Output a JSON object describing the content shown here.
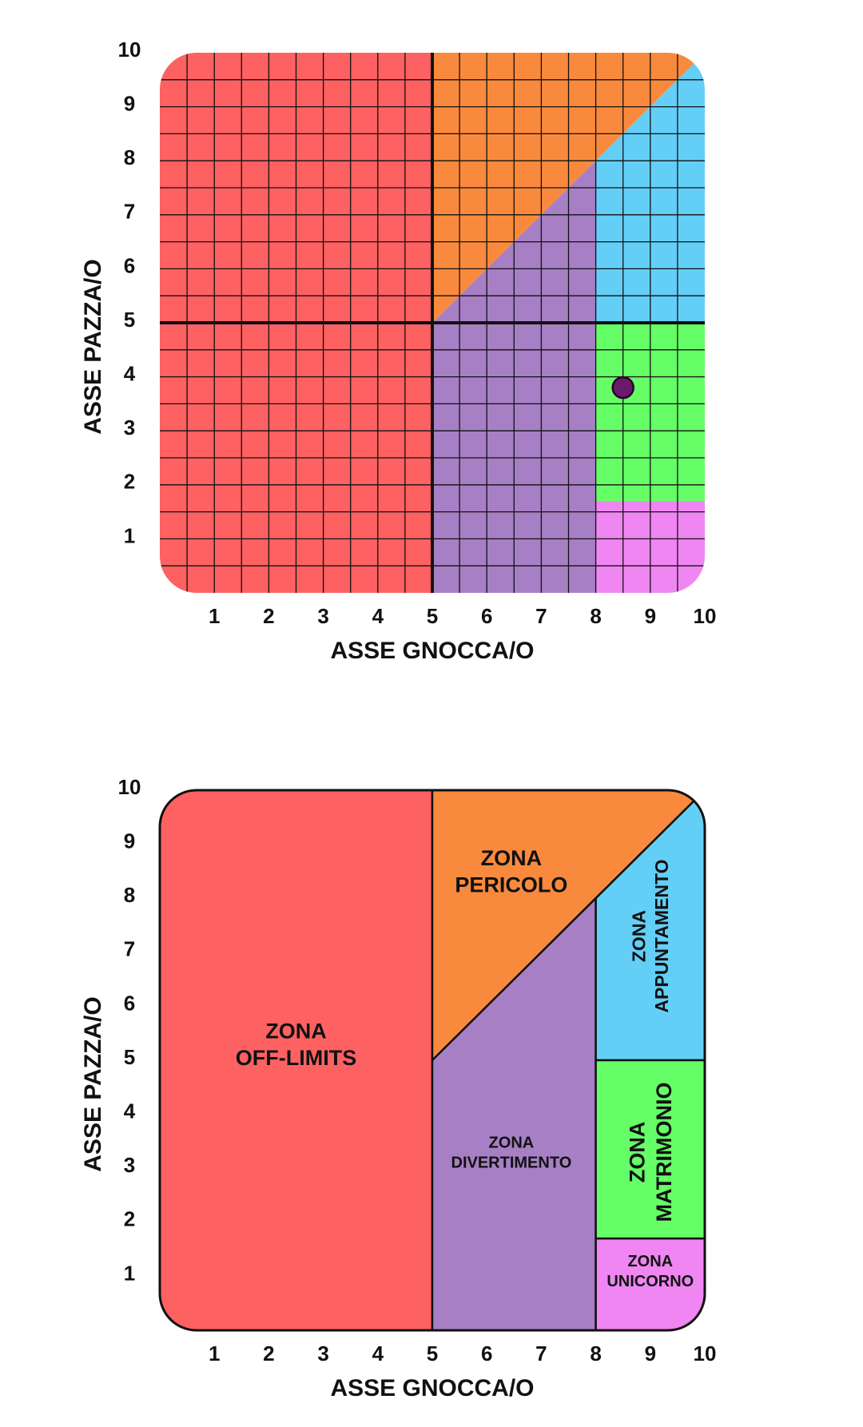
{
  "colors": {
    "red": "#fe6161",
    "orange": "#f98a3d",
    "purple": "#a77fc5",
    "blue": "#63cff7",
    "green": "#66fe66",
    "pink": "#ef86f2",
    "grid": "#111111",
    "point": "#6a1a6a"
  },
  "chart_data": [
    {
      "type": "scatter",
      "subtype": "zoned-grid",
      "xlabel": "ASSE GNOCCA/O",
      "ylabel": "ASSE PAZZA/O",
      "xlim": [
        0,
        10
      ],
      "ylim": [
        0,
        10
      ],
      "x_ticks": [
        "1",
        "2",
        "3",
        "4",
        "5",
        "6",
        "7",
        "8",
        "9",
        "10"
      ],
      "y_ticks": [
        "1",
        "2",
        "3",
        "4",
        "5",
        "6",
        "7",
        "8",
        "9",
        "10"
      ],
      "grid": true,
      "grid_step": 0.5,
      "dividers": {
        "x": 5,
        "y": 5
      },
      "point": {
        "x": 8.5,
        "y": 3.8
      },
      "zones": [
        {
          "id": "off-limits",
          "color": "red",
          "polygon": [
            [
              0,
              0
            ],
            [
              5,
              0
            ],
            [
              5,
              10
            ],
            [
              0,
              10
            ]
          ]
        },
        {
          "id": "pericolo",
          "color": "orange",
          "polygon": [
            [
              5,
              5
            ],
            [
              5,
              10
            ],
            [
              10,
              10
            ]
          ]
        },
        {
          "id": "divertimento",
          "color": "purple",
          "polygon": [
            [
              5,
              0
            ],
            [
              8,
              0
            ],
            [
              8,
              8
            ],
            [
              5,
              5
            ]
          ]
        },
        {
          "id": "appuntamento",
          "color": "blue",
          "polygon": [
            [
              8,
              5
            ],
            [
              10,
              5
            ],
            [
              10,
              10
            ],
            [
              8,
              8
            ]
          ]
        },
        {
          "id": "matrimonio",
          "color": "green",
          "polygon": [
            [
              8,
              1.7
            ],
            [
              10,
              1.7
            ],
            [
              10,
              5
            ],
            [
              8,
              5
            ]
          ]
        },
        {
          "id": "unicorno",
          "color": "pink",
          "polygon": [
            [
              8,
              0
            ],
            [
              10,
              0
            ],
            [
              10,
              1.7
            ],
            [
              8,
              1.7
            ]
          ]
        }
      ]
    },
    {
      "type": "area",
      "subtype": "zone-map",
      "xlabel": "ASSE GNOCCA/O",
      "ylabel": "ASSE PAZZA/O",
      "xlim": [
        0,
        10
      ],
      "ylim": [
        0,
        10
      ],
      "x_ticks": [
        "1",
        "2",
        "3",
        "4",
        "5",
        "6",
        "7",
        "8",
        "9",
        "10"
      ],
      "y_ticks": [
        "1",
        "2",
        "3",
        "4",
        "5",
        "6",
        "7",
        "8",
        "9",
        "10"
      ],
      "grid": false,
      "zones": [
        {
          "id": "off-limits",
          "color": "red",
          "polygon": [
            [
              0,
              0
            ],
            [
              5,
              0
            ],
            [
              5,
              10
            ],
            [
              0,
              10
            ]
          ],
          "label": [
            "ZONA",
            "OFF-LIMITS"
          ],
          "label_at": [
            2.5,
            5.3
          ],
          "rotate": false
        },
        {
          "id": "pericolo",
          "color": "orange",
          "polygon": [
            [
              5,
              5
            ],
            [
              5,
              10
            ],
            [
              10,
              10
            ]
          ],
          "label": [
            "ZONA",
            "PERICOLO"
          ],
          "label_at": [
            6.45,
            8.5
          ],
          "rotate": false
        },
        {
          "id": "divertimento",
          "color": "purple",
          "polygon": [
            [
              5,
              0
            ],
            [
              8,
              0
            ],
            [
              8,
              8
            ],
            [
              5,
              5
            ]
          ],
          "label": [
            "ZONA",
            "DIVERTIMENTO"
          ],
          "label_at": [
            6.45,
            3.3
          ],
          "rotate": false
        },
        {
          "id": "appuntamento",
          "color": "blue",
          "polygon": [
            [
              8,
              5
            ],
            [
              10,
              5
            ],
            [
              10,
              10
            ],
            [
              8,
              8
            ]
          ],
          "label": [
            "ZONA",
            "APPUNTAMENTO"
          ],
          "label_at": [
            9.0,
            7.3
          ],
          "rotate": true
        },
        {
          "id": "matrimonio",
          "color": "green",
          "polygon": [
            [
              8,
              1.7
            ],
            [
              10,
              1.7
            ],
            [
              10,
              5
            ],
            [
              8,
              5
            ]
          ],
          "label": [
            "ZONA",
            "MATRIMONIO"
          ],
          "label_at": [
            9.0,
            3.3
          ],
          "rotate": true
        },
        {
          "id": "unicorno",
          "color": "pink",
          "polygon": [
            [
              8,
              0
            ],
            [
              10,
              0
            ],
            [
              10,
              1.7
            ],
            [
              8,
              1.7
            ]
          ],
          "label": [
            "ZONA",
            "UNICORNO"
          ],
          "label_at": [
            9.0,
            1.1
          ],
          "rotate": false
        }
      ]
    }
  ]
}
